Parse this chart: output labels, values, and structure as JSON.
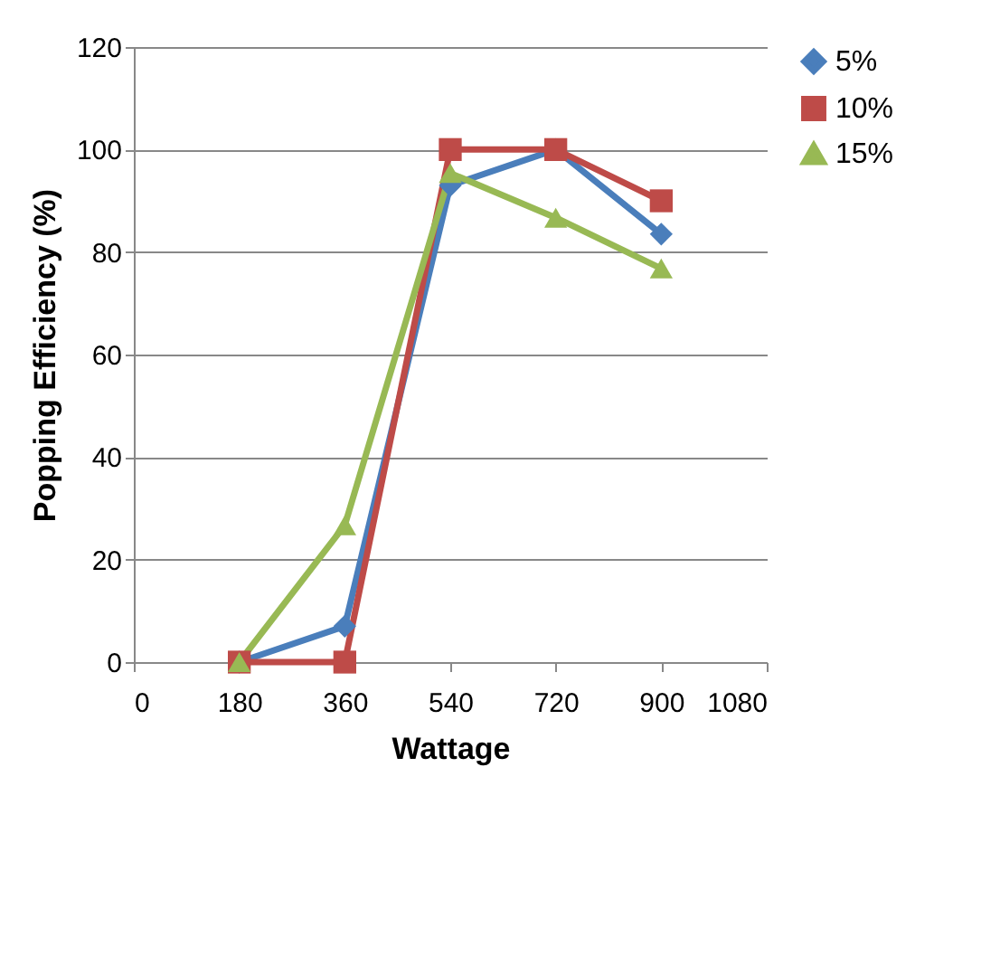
{
  "chart_data": {
    "type": "line",
    "xlabel": "Wattage",
    "ylabel": "Popping Efficiency (%)",
    "x": [
      180,
      360,
      540,
      720,
      900
    ],
    "xlim": [
      0,
      1080
    ],
    "xticks": [
      0,
      180,
      360,
      540,
      720,
      900,
      1080
    ],
    "ylim": [
      0,
      120
    ],
    "yticks": [
      0,
      20,
      40,
      60,
      80,
      100,
      120
    ],
    "grid": "y",
    "legend": "right",
    "series": [
      {
        "name": "5%",
        "color": "#4a7ebb",
        "marker": "diamond",
        "values": [
          0,
          7,
          93,
          100,
          83.5
        ]
      },
      {
        "name": "10%",
        "color": "#be4b48",
        "marker": "square",
        "values": [
          0,
          0,
          100,
          100,
          90
        ]
      },
      {
        "name": "15%",
        "color": "#98b954",
        "marker": "triangle",
        "values": [
          0,
          26.7,
          95.4,
          86.7,
          76.8
        ]
      }
    ]
  }
}
